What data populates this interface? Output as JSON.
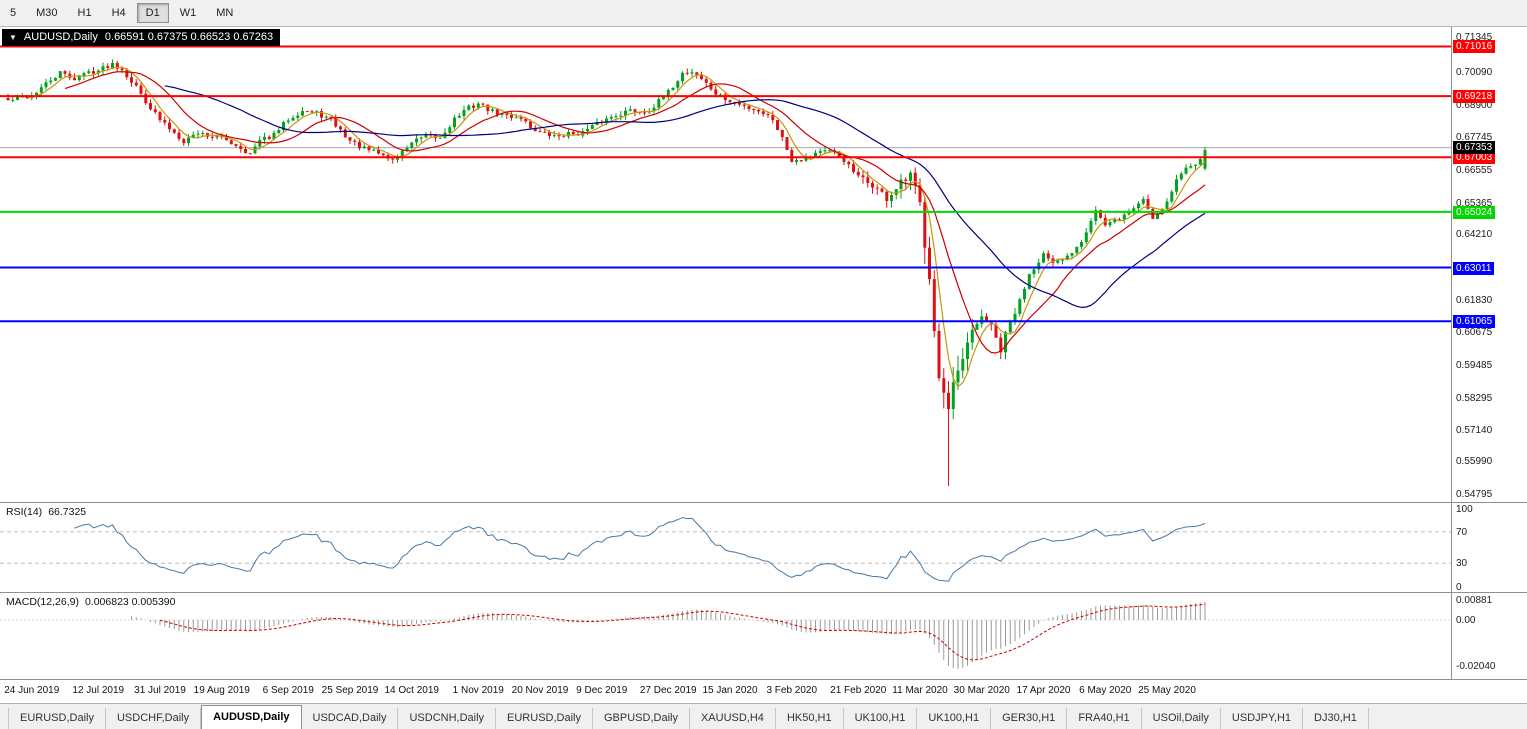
{
  "toolbar": {
    "timeframes": [
      {
        "label": "5",
        "active": false
      },
      {
        "label": "M30",
        "active": false
      },
      {
        "label": "H1",
        "active": false
      },
      {
        "label": "H4",
        "active": false
      },
      {
        "label": "D1",
        "active": true
      },
      {
        "label": "W1",
        "active": false
      },
      {
        "label": "MN",
        "active": false
      }
    ]
  },
  "main_chart": {
    "dropdown_icon": "▼",
    "header_symbol": "AUDUSD,Daily",
    "header_ohlc": "0.66591 0.67375 0.66523 0.67263"
  },
  "price_axis": {
    "ticks": [
      "0.71345",
      "0.70090",
      "0.68900",
      "0.67745",
      "0.66555",
      "0.65365",
      "0.64210",
      "0.61830",
      "0.60675",
      "0.59485",
      "0.58295",
      "0.57140",
      "0.55990",
      "0.54795"
    ],
    "current_price": {
      "label": "0.67353",
      "value": 0.67353,
      "bg": "#000000"
    }
  },
  "rsi": {
    "name": "RSI(14)",
    "value": "66.7325",
    "ticks": [
      "100",
      "70",
      "30",
      "0"
    ]
  },
  "macd": {
    "name": "MACD(12,26,9)",
    "values": "0.006823 0.005390",
    "ticks": [
      {
        "label": "0.00881",
        "value": 0.00881
      },
      {
        "label": "0.00",
        "value": 0
      },
      {
        "label": "-0.02040",
        "value": -0.0204
      }
    ]
  },
  "date_axis": {
    "labels": [
      {
        "text": "24 Jun 2019",
        "day": 0
      },
      {
        "text": "12 Jul 2019",
        "day": 14
      },
      {
        "text": "31 Jul 2019",
        "day": 27
      },
      {
        "text": "19 Aug 2019",
        "day": 40
      },
      {
        "text": "6 Sep 2019",
        "day": 54
      },
      {
        "text": "25 Sep 2019",
        "day": 67
      },
      {
        "text": "14 Oct 2019",
        "day": 80
      },
      {
        "text": "1 Nov 2019",
        "day": 94
      },
      {
        "text": "20 Nov 2019",
        "day": 107
      },
      {
        "text": "9 Dec 2019",
        "day": 120
      },
      {
        "text": "27 Dec 2019",
        "day": 134
      },
      {
        "text": "15 Jan 2020",
        "day": 147
      },
      {
        "text": "3 Feb 2020",
        "day": 160
      },
      {
        "text": "21 Feb 2020",
        "day": 174
      },
      {
        "text": "11 Mar 2020",
        "day": 187
      },
      {
        "text": "30 Mar 2020",
        "day": 200
      },
      {
        "text": "17 Apr 2020",
        "day": 213
      },
      {
        "text": "6 May 2020",
        "day": 226
      },
      {
        "text": "25 May 2020",
        "day": 239
      }
    ]
  },
  "tabs": [
    {
      "label": "EURUSD,Daily",
      "active": false
    },
    {
      "label": "USDCHF,Daily",
      "active": false
    },
    {
      "label": "AUDUSD,Daily",
      "active": true
    },
    {
      "label": "USDCAD,Daily",
      "active": false
    },
    {
      "label": "USDCNH,Daily",
      "active": false
    },
    {
      "label": "EURUSD,Daily",
      "active": false
    },
    {
      "label": "GBPUSD,Daily",
      "active": false
    },
    {
      "label": "XAUUSD,H4",
      "active": false
    },
    {
      "label": "HK50,H1",
      "active": false
    },
    {
      "label": "UK100,H1",
      "active": false
    },
    {
      "label": "UK100,H1",
      "active": false
    },
    {
      "label": "GER30,H1",
      "active": false
    },
    {
      "label": "FRA40,H1",
      "active": false
    },
    {
      "label": "USOil,Daily",
      "active": false
    },
    {
      "label": "USDJPY,H1",
      "active": false
    },
    {
      "label": "DJ30,H1",
      "active": false
    }
  ],
  "colors": {
    "candle_up": "#00a21f",
    "candle_down": "#dd1111",
    "ma_fast": "#c8960c",
    "ma_mid": "#cc0000",
    "ma_slow": "#00007f",
    "rsi_line": "#4878a8",
    "macd_bar": "#9a9a9a",
    "macd_signal": "#cc0000",
    "current_price_line": "#a8a8a8",
    "guide_dash": "#bdbdbd"
  },
  "chart_data": [
    {
      "type": "candlestick",
      "symbol": "AUDUSD",
      "timeframe": "Daily",
      "last_ohlc": {
        "open": 0.66591,
        "high": 0.67375,
        "low": 0.66523,
        "close": 0.67263
      },
      "y_axis_range": [
        0.5452,
        0.7172
      ],
      "days_total": 253,
      "lead_days": 5,
      "approx_daily_close_anchors": [
        [
          -5,
          0.6905
        ],
        [
          0,
          0.6925
        ],
        [
          3,
          0.6965
        ],
        [
          6,
          0.7005
        ],
        [
          9,
          0.6985
        ],
        [
          12,
          0.701
        ],
        [
          14,
          0.7015
        ],
        [
          17,
          0.704
        ],
        [
          19,
          0.702
        ],
        [
          22,
          0.6955
        ],
        [
          25,
          0.688
        ],
        [
          27,
          0.6835
        ],
        [
          30,
          0.679
        ],
        [
          32,
          0.676
        ],
        [
          35,
          0.679
        ],
        [
          38,
          0.6775
        ],
        [
          40,
          0.677
        ],
        [
          43,
          0.6745
        ],
        [
          46,
          0.6712
        ],
        [
          48,
          0.676
        ],
        [
          51,
          0.678
        ],
        [
          54,
          0.684
        ],
        [
          57,
          0.687
        ],
        [
          60,
          0.686
        ],
        [
          63,
          0.6835
        ],
        [
          67,
          0.676
        ],
        [
          70,
          0.673
        ],
        [
          73,
          0.6715
        ],
        [
          76,
          0.669
        ],
        [
          78,
          0.672
        ],
        [
          80,
          0.6755
        ],
        [
          83,
          0.6775
        ],
        [
          86,
          0.677
        ],
        [
          89,
          0.684
        ],
        [
          92,
          0.688
        ],
        [
          94,
          0.6895
        ],
        [
          97,
          0.6865
        ],
        [
          100,
          0.685
        ],
        [
          103,
          0.6845
        ],
        [
          105,
          0.681
        ],
        [
          107,
          0.679
        ],
        [
          110,
          0.6775
        ],
        [
          113,
          0.6785
        ],
        [
          116,
          0.679
        ],
        [
          118,
          0.681
        ],
        [
          120,
          0.683
        ],
        [
          123,
          0.6855
        ],
        [
          126,
          0.687
        ],
        [
          129,
          0.6865
        ],
        [
          131,
          0.6885
        ],
        [
          134,
          0.6935
        ],
        [
          137,
          0.7005
        ],
        [
          139,
          0.701
        ],
        [
          141,
          0.6985
        ],
        [
          144,
          0.693
        ],
        [
          147,
          0.69
        ],
        [
          150,
          0.6885
        ],
        [
          153,
          0.687
        ],
        [
          156,
          0.684
        ],
        [
          158,
          0.677
        ],
        [
          160,
          0.669
        ],
        [
          163,
          0.67
        ],
        [
          166,
          0.6725
        ],
        [
          169,
          0.6715
        ],
        [
          171,
          0.669
        ],
        [
          174,
          0.6625
        ],
        [
          177,
          0.66
        ],
        [
          180,
          0.655
        ],
        [
          183,
          0.66
        ],
        [
          185,
          0.663
        ],
        [
          187,
          0.652
        ],
        [
          189,
          0.629
        ],
        [
          191,
          0.59
        ],
        [
          193,
          0.577
        ],
        [
          194,
          0.585
        ],
        [
          196,
          0.596
        ],
        [
          198,
          0.605
        ],
        [
          200,
          0.613
        ],
        [
          202,
          0.608
        ],
        [
          204,
          0.6
        ],
        [
          206,
          0.61
        ],
        [
          208,
          0.618
        ],
        [
          210,
          0.628
        ],
        [
          213,
          0.635
        ],
        [
          215,
          0.631
        ],
        [
          218,
          0.634
        ],
        [
          221,
          0.64
        ],
        [
          224,
          0.651
        ],
        [
          226,
          0.645
        ],
        [
          228,
          0.647
        ],
        [
          231,
          0.65
        ],
        [
          234,
          0.655
        ],
        [
          236,
          0.648
        ],
        [
          239,
          0.654
        ],
        [
          241,
          0.662
        ],
        [
          243,
          0.666
        ],
        [
          245,
          0.668
        ],
        [
          247,
          0.67263
        ]
      ],
      "extreme_low": {
        "day": 193,
        "price": 0.551
      },
      "levels": [
        {
          "value": 0.71016,
          "label": "0.71016",
          "color": "#ff0000"
        },
        {
          "value": 0.69218,
          "label": "0.69218",
          "color": "#ff0000"
        },
        {
          "value": 0.67003,
          "label": "0.67003",
          "color": "#ff0000"
        },
        {
          "value": 0.65024,
          "label": "0.65024",
          "color": "#00d800"
        },
        {
          "value": 0.63011,
          "label": "0.63011",
          "color": "#0000ff"
        },
        {
          "value": 0.61065,
          "label": "0.61065",
          "color": "#0000ff"
        }
      ],
      "current_price": 0.67353,
      "moving_averages": [
        {
          "period": 5,
          "color": "#c8960c"
        },
        {
          "period": 13,
          "color": "#cc0000"
        },
        {
          "period": 34,
          "color": "#00007f"
        }
      ]
    },
    {
      "type": "line",
      "name": "RSI(14)",
      "period": 14,
      "current": 66.7325,
      "guide_levels": [
        70,
        30
      ],
      "range": [
        0,
        100
      ]
    },
    {
      "type": "bar",
      "name": "MACD(12,26,9)",
      "params": [
        12,
        26,
        9
      ],
      "current_macd": 0.006823,
      "current_signal": 0.00539,
      "axis_max": 0.00881,
      "axis_min": -0.0204
    }
  ]
}
